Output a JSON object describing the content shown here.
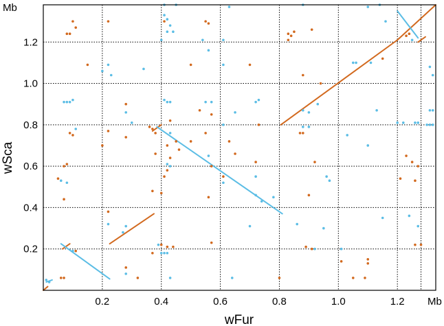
{
  "chart_data": {
    "type": "scatter",
    "title": "",
    "xlabel": "wFur",
    "ylabel": "wSca",
    "x_unit_label": "Mb",
    "y_unit_label": "Mb",
    "xlim": [
      0,
      1.33
    ],
    "ylim": [
      0,
      1.38
    ],
    "x_ticks": [
      0.2,
      0.4,
      0.6,
      0.8,
      1.0,
      1.2
    ],
    "x_tick_labels": [
      "0.2",
      "0.4",
      "0.6",
      "0.8",
      "1.0",
      "1.2"
    ],
    "y_ticks": [
      0.2,
      0.4,
      0.6,
      0.8,
      1.0,
      1.2
    ],
    "y_tick_labels": [
      "0.2",
      "0.4",
      "0.6",
      "0.8",
      "1.0",
      "1.2"
    ],
    "grid": true,
    "grid_x_values": [
      0.2,
      0.4,
      0.6,
      0.8,
      1.0,
      1.2,
      1.28
    ],
    "grid_y_values": [
      0.2,
      0.4,
      0.6,
      0.8,
      1.0,
      1.2
    ],
    "legend": "none",
    "colors": {
      "orange": "#d2691e",
      "blue": "#5bbde5"
    },
    "series": [
      {
        "color": "orange",
        "segments": [
          [
            [
              0.0,
              0.0
            ],
            [
              0.015,
              0.018
            ]
          ],
          [
            [
              0.065,
              0.2
            ],
            [
              0.09,
              0.225
            ]
          ],
          [
            [
              0.225,
              0.225
            ],
            [
              0.375,
              0.37
            ]
          ],
          [
            [
              0.37,
              0.77
            ],
            [
              0.4,
              0.8
            ]
          ],
          [
            [
              0.805,
              0.8
            ],
            [
              1.2,
              1.21
            ]
          ],
          [
            [
              1.2,
              1.21
            ],
            [
              1.33,
              1.38
            ]
          ],
          [
            [
              1.27,
              1.2
            ],
            [
              1.295,
              1.225
            ]
          ]
        ],
        "points": [
          [
            0.08,
            1.24
          ],
          [
            0.09,
            1.24
          ],
          [
            0.1,
            1.3
          ],
          [
            0.11,
            1.27
          ],
          [
            0.22,
            1.3
          ],
          [
            0.41,
            1.3
          ],
          [
            0.55,
            1.3
          ],
          [
            0.56,
            1.29
          ],
          [
            0.83,
            1.24
          ],
          [
            0.84,
            1.23
          ],
          [
            0.85,
            1.25
          ],
          [
            0.83,
            1.21
          ],
          [
            0.91,
            1.26
          ],
          [
            1.23,
            1.23
          ],
          [
            1.24,
            1.24
          ],
          [
            0.15,
            1.09
          ],
          [
            0.5,
            1.09
          ],
          [
            0.7,
            1.09
          ],
          [
            0.88,
            1.04
          ],
          [
            0.94,
            1.0
          ],
          [
            1.15,
            1.12
          ],
          [
            0.28,
            0.9
          ],
          [
            0.53,
            0.87
          ],
          [
            0.57,
            0.85
          ],
          [
            0.43,
            0.82
          ],
          [
            0.36,
            0.79
          ],
          [
            0.37,
            0.78
          ],
          [
            0.38,
            0.76
          ],
          [
            0.45,
            0.72
          ],
          [
            0.5,
            0.72
          ],
          [
            0.55,
            0.76
          ],
          [
            0.63,
            0.72
          ],
          [
            0.73,
            0.8
          ],
          [
            0.87,
            0.76
          ],
          [
            0.88,
            0.76
          ],
          [
            0.09,
            0.76
          ],
          [
            0.1,
            0.75
          ],
          [
            0.22,
            0.77
          ],
          [
            0.28,
            0.74
          ],
          [
            0.2,
            0.7
          ],
          [
            0.42,
            0.7
          ],
          [
            0.46,
            0.68
          ],
          [
            0.38,
            0.66
          ],
          [
            0.43,
            0.64
          ],
          [
            0.65,
            0.66
          ],
          [
            0.57,
            0.6
          ],
          [
            0.72,
            0.62
          ],
          [
            0.92,
            0.62
          ],
          [
            1.23,
            0.65
          ],
          [
            1.27,
            0.6
          ],
          [
            1.25,
            0.62
          ],
          [
            0.07,
            0.6
          ],
          [
            0.08,
            0.61
          ],
          [
            0.42,
            0.58
          ],
          [
            0.61,
            0.55
          ],
          [
            0.05,
            0.54
          ],
          [
            0.41,
            0.55
          ],
          [
            1.21,
            0.54
          ],
          [
            1.26,
            0.53
          ],
          [
            0.4,
            0.47
          ],
          [
            0.56,
            0.45
          ],
          [
            0.9,
            0.46
          ],
          [
            0.07,
            0.44
          ],
          [
            0.37,
            0.48
          ],
          [
            0.22,
            0.38
          ],
          [
            0.4,
            0.22
          ],
          [
            0.42,
            0.21
          ],
          [
            0.44,
            0.21
          ],
          [
            0.57,
            0.23
          ],
          [
            0.37,
            0.18
          ],
          [
            0.89,
            0.21
          ],
          [
            0.91,
            0.2
          ],
          [
            1.1,
            0.15
          ],
          [
            1.1,
            0.13
          ],
          [
            1.01,
            0.14
          ],
          [
            1.26,
            0.22
          ],
          [
            1.28,
            0.22
          ],
          [
            0.28,
            0.11
          ],
          [
            0.32,
            0.06
          ],
          [
            0.8,
            0.06
          ],
          [
            1.05,
            0.06
          ],
          [
            1.09,
            0.06
          ],
          [
            0.06,
            0.06
          ],
          [
            0.07,
            0.06
          ],
          [
            0.11,
            0.19
          ]
        ]
      },
      {
        "color": "blue",
        "segments": [
          [
            [
              0.01,
              0.04
            ],
            [
              0.03,
              0.05
            ]
          ],
          [
            [
              0.06,
              0.225
            ],
            [
              0.225,
              0.055
            ]
          ],
          [
            [
              0.385,
              0.79
            ],
            [
              0.81,
              0.37
            ]
          ],
          [
            [
              1.2,
              1.35
            ],
            [
              1.27,
              1.22
            ]
          ]
        ],
        "points": [
          [
            0.01,
            0.05
          ],
          [
            0.02,
            0.04
          ],
          [
            0.41,
            1.38
          ],
          [
            0.45,
            1.38
          ],
          [
            0.63,
            1.37
          ],
          [
            0.88,
            1.38
          ],
          [
            1.1,
            1.37
          ],
          [
            1.14,
            1.38
          ],
          [
            0.41,
            1.33
          ],
          [
            0.42,
            1.31
          ],
          [
            0.43,
            1.28
          ],
          [
            0.42,
            1.25
          ],
          [
            0.44,
            1.25
          ],
          [
            0.4,
            1.21
          ],
          [
            0.54,
            1.21
          ],
          [
            0.61,
            1.21
          ],
          [
            1.16,
            1.3
          ],
          [
            1.25,
            1.21
          ],
          [
            0.22,
            1.09
          ],
          [
            0.2,
            1.06
          ],
          [
            0.34,
            1.07
          ],
          [
            0.23,
            1.04
          ],
          [
            0.56,
            1.16
          ],
          [
            0.61,
            1.09
          ],
          [
            1.05,
            1.1
          ],
          [
            1.06,
            1.1
          ],
          [
            1.11,
            1.1
          ],
          [
            1.31,
            1.08
          ],
          [
            1.32,
            1.04
          ],
          [
            0.07,
            0.91
          ],
          [
            0.08,
            0.91
          ],
          [
            0.09,
            0.91
          ],
          [
            0.1,
            0.92
          ],
          [
            0.28,
            0.86
          ],
          [
            0.41,
            0.92
          ],
          [
            0.42,
            0.91
          ],
          [
            0.43,
            0.91
          ],
          [
            0.55,
            0.91
          ],
          [
            0.57,
            0.91
          ],
          [
            0.65,
            0.86
          ],
          [
            0.72,
            0.91
          ],
          [
            0.73,
            0.92
          ],
          [
            0.88,
            0.87
          ],
          [
            0.9,
            0.86
          ],
          [
            0.93,
            0.9
          ],
          [
            1.13,
            0.87
          ],
          [
            1.31,
            0.87
          ],
          [
            1.32,
            0.87
          ],
          [
            0.11,
            0.78
          ],
          [
            0.3,
            0.81
          ],
          [
            0.43,
            0.76
          ],
          [
            0.61,
            0.8
          ],
          [
            0.88,
            0.79
          ],
          [
            0.9,
            0.79
          ],
          [
            1.03,
            0.75
          ],
          [
            1.1,
            0.7
          ],
          [
            1.2,
            0.81
          ],
          [
            1.22,
            0.81
          ],
          [
            1.26,
            0.81
          ],
          [
            1.27,
            0.81
          ],
          [
            1.3,
            0.8
          ],
          [
            1.31,
            0.8
          ],
          [
            1.32,
            0.8
          ],
          [
            0.42,
            0.61
          ],
          [
            0.43,
            0.6
          ],
          [
            0.61,
            0.52
          ],
          [
            0.72,
            0.55
          ],
          [
            0.72,
            0.46
          ],
          [
            0.56,
            0.65
          ],
          [
            0.08,
            0.52
          ],
          [
            0.06,
            0.53
          ],
          [
            0.96,
            0.55
          ],
          [
            0.97,
            0.53
          ],
          [
            0.74,
            0.43
          ],
          [
            0.78,
            0.45
          ],
          [
            0.22,
            0.32
          ],
          [
            0.27,
            0.28
          ],
          [
            0.28,
            0.31
          ],
          [
            0.39,
            0.22
          ],
          [
            0.4,
            0.18
          ],
          [
            0.41,
            0.18
          ],
          [
            0.42,
            0.18
          ],
          [
            0.7,
            0.31
          ],
          [
            0.86,
            0.32
          ],
          [
            1.15,
            0.35
          ],
          [
            1.24,
            0.36
          ],
          [
            1.27,
            0.31
          ],
          [
            0.95,
            0.3
          ],
          [
            0.92,
            0.2
          ],
          [
            1.01,
            0.2
          ],
          [
            0.28,
            0.08
          ],
          [
            0.43,
            0.06
          ],
          [
            0.64,
            0.06
          ],
          [
            0.1,
            0.19
          ]
        ]
      }
    ]
  }
}
